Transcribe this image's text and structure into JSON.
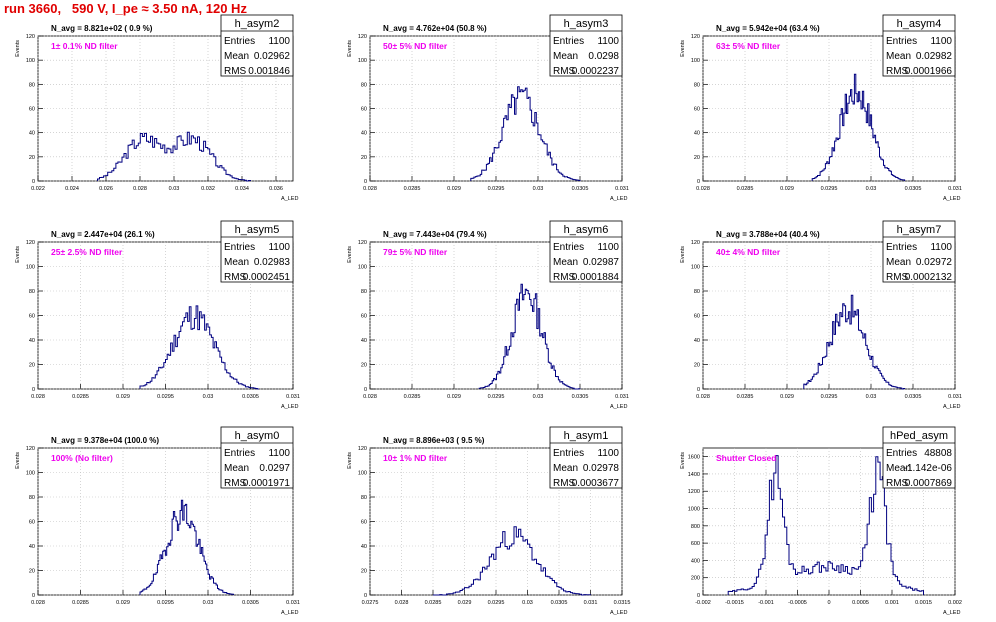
{
  "header": {
    "title": "run 3660,   590 V, I_pe ≈ 3.50 nA, 120 Hz"
  },
  "colors": {
    "title": "#e00000",
    "histogram": "#000080",
    "filter_label": "#ee00ee",
    "navg_label": "#000000"
  },
  "chart_data": [
    {
      "type": "bar",
      "name": "h_asym2",
      "navg": "N_avg = 8.821e+02 ( 0.9 %)",
      "filter": "1± 0.1% ND filter",
      "stats": {
        "entries": "1100",
        "mean": "0.02962",
        "rms": "0.001846"
      },
      "xlabel": "A_LED",
      "ylabel": "Events",
      "xlim": [
        0.022,
        0.037
      ],
      "ylim": [
        0,
        120
      ],
      "xticks": [
        "0.022",
        "0.024",
        "0.026",
        "0.028",
        "0.03",
        "0.032",
        "0.034",
        "0.036"
      ],
      "yticks": [
        "0",
        "20",
        "40",
        "60",
        "80",
        "100",
        "120"
      ],
      "peaks": [
        {
          "mu": 0.0282,
          "sigma": 0.0011,
          "amp": 34
        },
        {
          "mu": 0.0311,
          "sigma": 0.0011,
          "amp": 34
        }
      ],
      "x_range": [
        0.0255,
        0.0345
      ],
      "bins": 75,
      "seed": 3
    },
    {
      "type": "bar",
      "name": "h_asym3",
      "navg": "N_avg = 4.762e+04 (50.8 %)",
      "filter": "50± 5% ND filter",
      "stats": {
        "entries": "1100",
        "mean": "0.0298",
        "rms": "0.0002237"
      },
      "xlabel": "A_LED",
      "ylabel": "Events",
      "xlim": [
        0.028,
        0.031
      ],
      "ylim": [
        0,
        120
      ],
      "xticks": [
        "0.028",
        "0.0285",
        "0.029",
        "0.0295",
        "0.03",
        "0.0305",
        "0.031"
      ],
      "yticks": [
        "0",
        "20",
        "40",
        "60",
        "80",
        "100",
        "120"
      ],
      "peaks": [
        {
          "mu": 0.0298,
          "sigma": 0.00022,
          "amp": 68
        }
      ],
      "x_range": [
        0.0292,
        0.0305
      ],
      "bins": 70,
      "seed": 5
    },
    {
      "type": "bar",
      "name": "h_asym4",
      "navg": "N_avg = 5.942e+04 (63.4 %)",
      "filter": "63± 5% ND filter",
      "stats": {
        "entries": "1100",
        "mean": "0.02982",
        "rms": "0.0001966"
      },
      "xlabel": "A_LED",
      "ylabel": "Events",
      "xlim": [
        0.028,
        0.031
      ],
      "ylim": [
        0,
        120
      ],
      "xticks": [
        "0.028",
        "0.0285",
        "0.029",
        "0.0295",
        "0.03",
        "0.0305",
        "0.031"
      ],
      "yticks": [
        "0",
        "20",
        "40",
        "60",
        "80",
        "100",
        "120"
      ],
      "peaks": [
        {
          "mu": 0.02982,
          "sigma": 0.00019,
          "amp": 74
        }
      ],
      "x_range": [
        0.0293,
        0.0304
      ],
      "bins": 70,
      "seed": 7
    },
    {
      "type": "bar",
      "name": "h_asym5",
      "navg": "N_avg = 2.447e+04 (26.1 %)",
      "filter": "25± 2.5% ND filter",
      "stats": {
        "entries": "1100",
        "mean": "0.02983",
        "rms": "0.0002451"
      },
      "xlabel": "A_LED",
      "ylabel": "Events",
      "xlim": [
        0.028,
        0.031
      ],
      "ylim": [
        0,
        120
      ],
      "xticks": [
        "0.028",
        "0.0285",
        "0.029",
        "0.0295",
        "0.03",
        "0.0305",
        "0.031"
      ],
      "yticks": [
        "0",
        "20",
        "40",
        "60",
        "80",
        "100",
        "120"
      ],
      "peaks": [
        {
          "mu": 0.02983,
          "sigma": 0.00024,
          "amp": 60
        }
      ],
      "x_range": [
        0.0292,
        0.0306
      ],
      "bins": 70,
      "seed": 11
    },
    {
      "type": "bar",
      "name": "h_asym6",
      "navg": "N_avg = 7.443e+04 (79.4 %)",
      "filter": "79± 5% ND filter",
      "stats": {
        "entries": "1100",
        "mean": "0.02987",
        "rms": "0.0001884"
      },
      "xlabel": "A_LED",
      "ylabel": "Events",
      "xlim": [
        0.028,
        0.031
      ],
      "ylim": [
        0,
        120
      ],
      "xticks": [
        "0.028",
        "0.0285",
        "0.029",
        "0.0295",
        "0.03",
        "0.0305",
        "0.031"
      ],
      "yticks": [
        "0",
        "20",
        "40",
        "60",
        "80",
        "100",
        "120"
      ],
      "peaks": [
        {
          "mu": 0.02987,
          "sigma": 0.00018,
          "amp": 78
        }
      ],
      "x_range": [
        0.0293,
        0.0305
      ],
      "bins": 70,
      "seed": 13
    },
    {
      "type": "bar",
      "name": "h_asym7",
      "navg": "N_avg = 3.788e+04 (40.4 %)",
      "filter": "40± 4% ND filter",
      "stats": {
        "entries": "1100",
        "mean": "0.02972",
        "rms": "0.0002132"
      },
      "xlabel": "A_LED",
      "ylabel": "Events",
      "xlim": [
        0.028,
        0.031
      ],
      "ylim": [
        0,
        120
      ],
      "xticks": [
        "0.028",
        "0.0285",
        "0.029",
        "0.0295",
        "0.03",
        "0.0305",
        "0.031"
      ],
      "yticks": [
        "0",
        "20",
        "40",
        "60",
        "80",
        "100",
        "120"
      ],
      "peaks": [
        {
          "mu": 0.02972,
          "sigma": 0.00021,
          "amp": 66
        }
      ],
      "x_range": [
        0.0292,
        0.0304
      ],
      "bins": 70,
      "seed": 17
    },
    {
      "type": "bar",
      "name": "h_asym0",
      "navg": "N_avg = 9.378e+04 (100.0 %)",
      "filter": "100% (No filter)",
      "stats": {
        "entries": "1100",
        "mean": "0.0297",
        "rms": "0.0001971"
      },
      "xlabel": "A_LED",
      "ylabel": "Events",
      "xlim": [
        0.028,
        0.031
      ],
      "ylim": [
        0,
        120
      ],
      "xticks": [
        "0.028",
        "0.0285",
        "0.029",
        "0.0295",
        "0.03",
        "0.0305",
        "0.031"
      ],
      "yticks": [
        "0",
        "20",
        "40",
        "60",
        "80",
        "100",
        "120"
      ],
      "peaks": [
        {
          "mu": 0.0297,
          "sigma": 0.00019,
          "amp": 68
        }
      ],
      "x_range": [
        0.0292,
        0.0303
      ],
      "bins": 70,
      "seed": 19
    },
    {
      "type": "bar",
      "name": "h_asym1",
      "navg": "N_avg = 8.896e+03 ( 9.5 %)",
      "filter": "10± 1% ND filter",
      "stats": {
        "entries": "1100",
        "mean": "0.02978",
        "rms": "0.0003677"
      },
      "xlabel": "A_LED",
      "ylabel": "Events",
      "xlim": [
        0.0275,
        0.0315
      ],
      "ylim": [
        0,
        120
      ],
      "xticks": [
        "0.0275",
        "0.028",
        "0.0285",
        "0.029",
        "0.0295",
        "0.03",
        "0.0305",
        "0.031",
        "0.0315"
      ],
      "yticks": [
        "0",
        "20",
        "40",
        "60",
        "80",
        "100",
        "120"
      ],
      "peaks": [
        {
          "mu": 0.02978,
          "sigma": 0.00036,
          "amp": 48
        }
      ],
      "x_range": [
        0.0285,
        0.031
      ],
      "bins": 70,
      "seed": 23
    },
    {
      "type": "bar",
      "name": "hPed_asym",
      "navg": "",
      "filter": "Shutter Closed",
      "stats": {
        "entries": "48808",
        "mean": "-1.142e-06",
        "rms": "0.0007869"
      },
      "xlabel": "A_LED",
      "ylabel": "Events",
      "xlim": [
        -0.002,
        0.002
      ],
      "ylim": [
        0,
        1700
      ],
      "xticks": [
        "-0.002",
        "-0.0015",
        "-0.001",
        "-0.0005",
        "0",
        "0.0005",
        "0.001",
        "0.0015",
        "0.002"
      ],
      "yticks": [
        "0",
        "200",
        "400",
        "600",
        "800",
        "1000",
        "1200",
        "1400",
        "1600"
      ],
      "peaks": [
        {
          "mu": -0.00085,
          "sigma": 0.00012,
          "amp": 1250
        },
        {
          "mu": 0.00078,
          "sigma": 0.00012,
          "amp": 1250
        },
        {
          "mu": 0.0,
          "sigma": 0.00075,
          "amp": 330
        }
      ],
      "x_range": [
        -0.0016,
        0.0015
      ],
      "bins": 90,
      "seed": 29
    }
  ]
}
